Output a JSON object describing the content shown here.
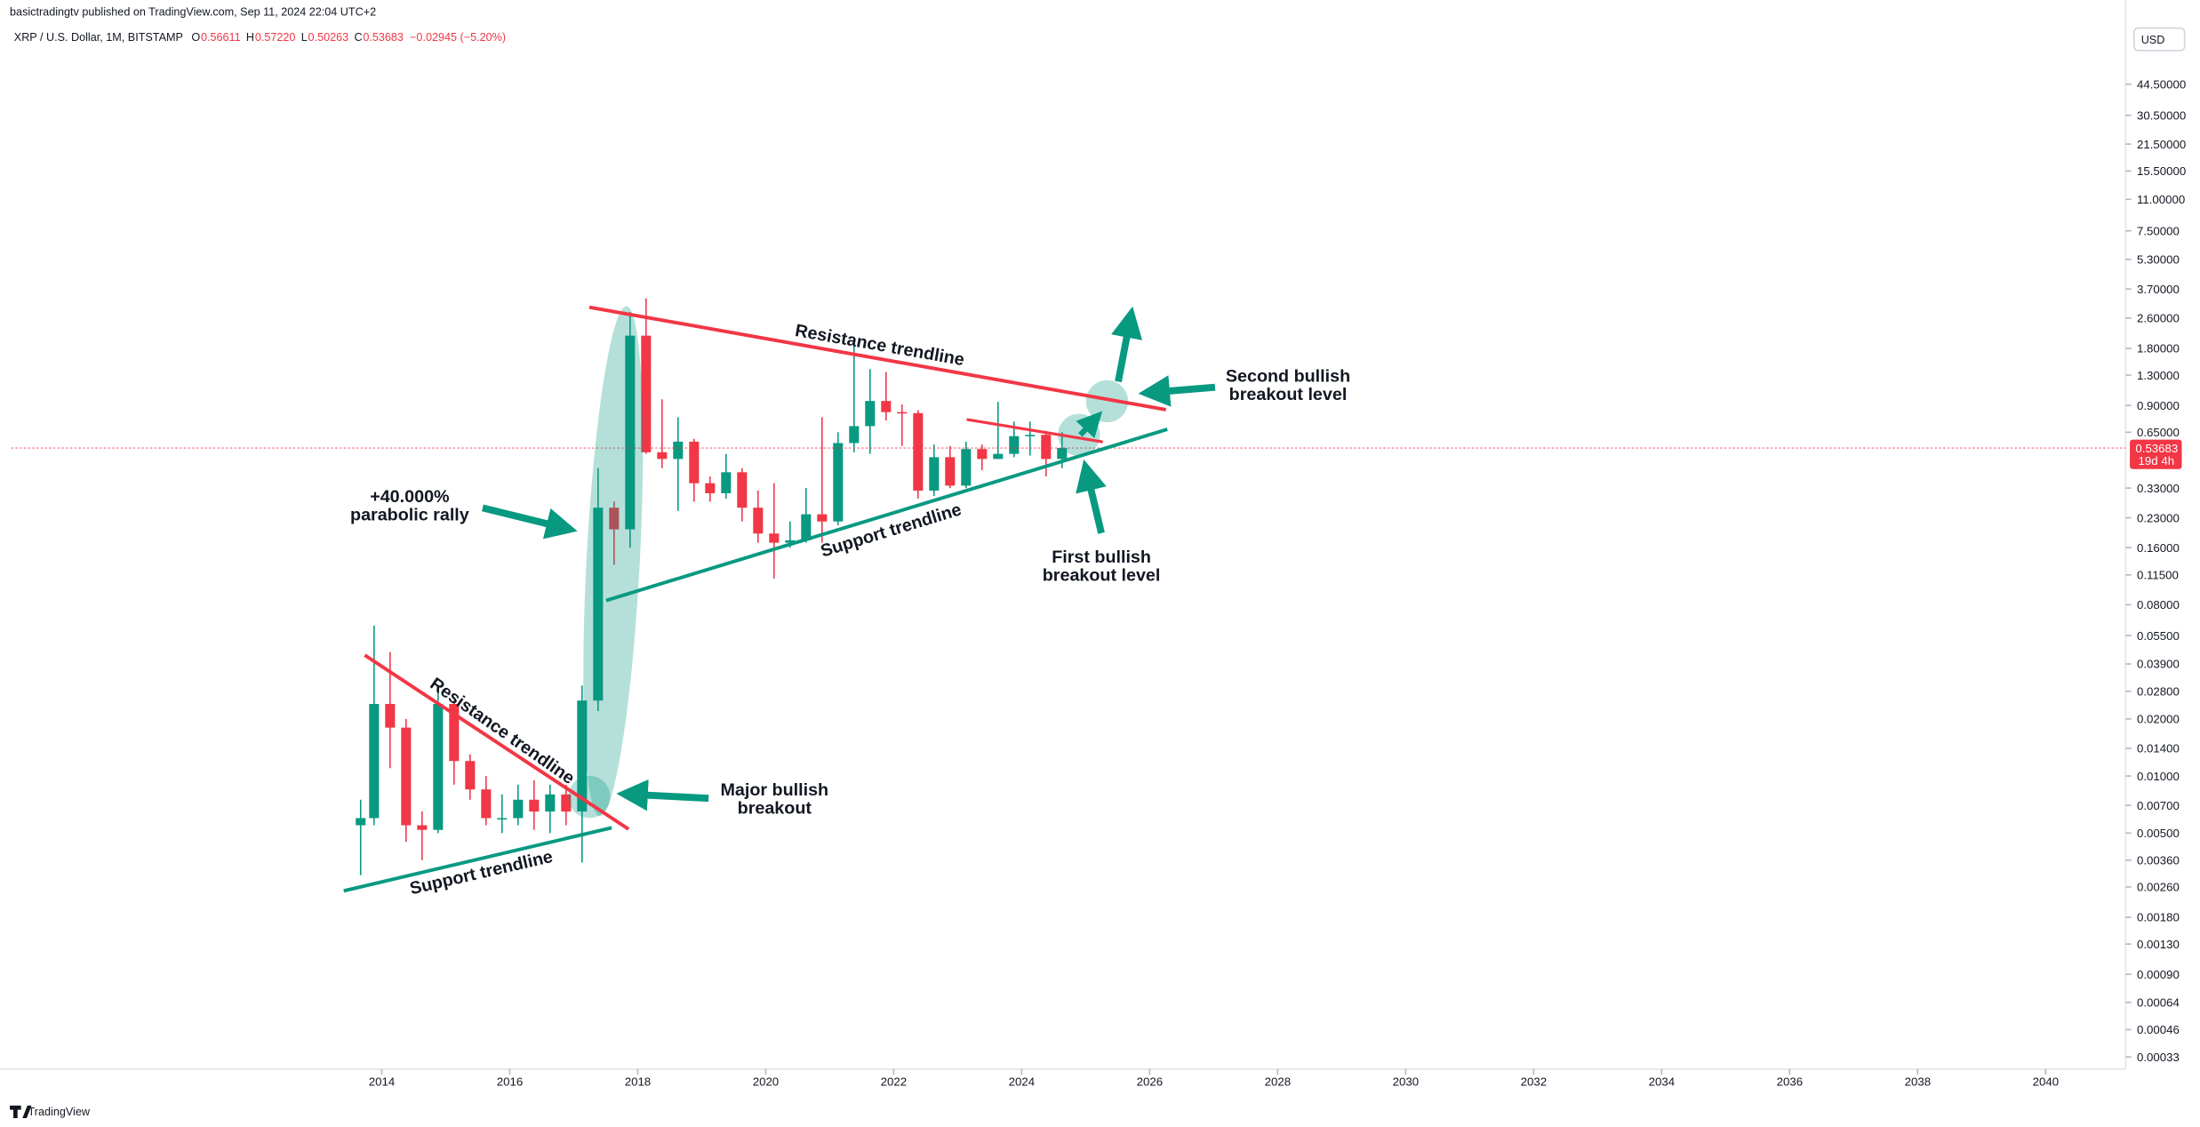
{
  "chart_data": {
    "type": "candlestick",
    "publisher": "basictradingtv published on TradingView.com, Sep 11, 2024 22:04 UTC+2",
    "symbol": "XRP / U.S. Dollar, 1M, BITSTAMP",
    "ohlc_legend": [
      {
        "label": "O",
        "value": "0.56611"
      },
      {
        "label": "H",
        "value": "0.57220"
      },
      {
        "label": "L",
        "value": "0.50263"
      },
      {
        "label": "C",
        "value": "0.53683"
      },
      {
        "label": "",
        "value": "−0.02945 (−5.20%)"
      }
    ],
    "currency": "USD",
    "last_price": 0.53683,
    "countdown": "19d 4h",
    "brand": "TradingView",
    "log_scale": true,
    "up_color": "#089981",
    "down_color": "#f23645",
    "xlim": [
      2008.21,
      2041.25
    ],
    "xticks": [
      2014,
      2016,
      2018,
      2020,
      2022,
      2024,
      2026,
      2028,
      2030,
      2032,
      2034,
      2036,
      2038,
      2040
    ],
    "ylim": [
      0.000285,
      85
    ],
    "yticks": [
      {
        "value": 44.5,
        "label": "44.50000"
      },
      {
        "value": 30.5,
        "label": "30.50000"
      },
      {
        "value": 21.5,
        "label": "21.50000"
      },
      {
        "value": 15.5,
        "label": "15.50000"
      },
      {
        "value": 11,
        "label": "11.00000"
      },
      {
        "value": 7.5,
        "label": "7.50000"
      },
      {
        "value": 5.3,
        "label": "5.30000"
      },
      {
        "value": 3.7,
        "label": "3.70000"
      },
      {
        "value": 2.6,
        "label": "2.60000"
      },
      {
        "value": 1.8,
        "label": "1.80000"
      },
      {
        "value": 1.3,
        "label": "1.30000"
      },
      {
        "value": 0.9,
        "label": "0.90000"
      },
      {
        "value": 0.65,
        "label": "0.65000"
      },
      {
        "value": 0.33,
        "label": "0.33000"
      },
      {
        "value": 0.23,
        "label": "0.23000"
      },
      {
        "value": 0.16,
        "label": "0.16000"
      },
      {
        "value": 0.115,
        "label": "0.11500"
      },
      {
        "value": 0.08,
        "label": "0.08000"
      },
      {
        "value": 0.055,
        "label": "0.05500"
      },
      {
        "value": 0.039,
        "label": "0.03900"
      },
      {
        "value": 0.028,
        "label": "0.02800"
      },
      {
        "value": 0.02,
        "label": "0.02000"
      },
      {
        "value": 0.014,
        "label": "0.01400"
      },
      {
        "value": 0.01,
        "label": "0.01000"
      },
      {
        "value": 0.007,
        "label": "0.00700"
      },
      {
        "value": 0.005,
        "label": "0.00500"
      },
      {
        "value": 0.0036,
        "label": "0.00360"
      },
      {
        "value": 0.0026,
        "label": "0.00260"
      },
      {
        "value": 0.0018,
        "label": "0.00180"
      },
      {
        "value": 0.0013,
        "label": "0.00130"
      },
      {
        "value": 0.0009,
        "label": "0.00090"
      },
      {
        "value": 0.00064,
        "label": "0.00064"
      },
      {
        "value": 0.00046,
        "label": "0.00046"
      },
      {
        "value": 0.00033,
        "label": "0.00033"
      }
    ],
    "x": [
      2013.67,
      2013.88,
      2014.13,
      2014.38,
      2014.63,
      2014.88,
      2015.13,
      2015.38,
      2015.63,
      2015.88,
      2016.13,
      2016.38,
      2016.63,
      2016.88,
      2017.13,
      2017.38,
      2017.63,
      2017.88,
      2018.13,
      2018.38,
      2018.63,
      2018.88,
      2019.13,
      2019.38,
      2019.63,
      2019.88,
      2020.13,
      2020.38,
      2020.63,
      2020.88,
      2021.13,
      2021.38,
      2021.63,
      2021.88,
      2022.13,
      2022.38,
      2022.63,
      2022.88,
      2023.13,
      2023.38,
      2023.63,
      2023.88,
      2024.13,
      2024.38,
      2024.63
    ],
    "open": [
      0.0055,
      0.006,
      0.024,
      0.018,
      0.0055,
      0.0052,
      0.024,
      0.012,
      0.0085,
      0.006,
      0.006,
      0.0075,
      0.0065,
      0.008,
      0.0065,
      0.025,
      0.26,
      0.2,
      2.1,
      0.51,
      0.47,
      0.58,
      0.35,
      0.31,
      0.4,
      0.26,
      0.19,
      0.17,
      0.175,
      0.24,
      0.22,
      0.57,
      0.7,
      0.95,
      0.83,
      0.82,
      0.32,
      0.48,
      0.34,
      0.53,
      0.47,
      0.5,
      0.62,
      0.63,
      0.47
    ],
    "high": [
      0.0075,
      0.062,
      0.045,
      0.02,
      0.0065,
      0.03,
      0.025,
      0.013,
      0.01,
      0.008,
      0.009,
      0.0095,
      0.009,
      0.009,
      0.03,
      0.42,
      0.28,
      2.8,
      3.3,
      0.97,
      0.78,
      0.6,
      0.38,
      0.5,
      0.42,
      0.32,
      0.35,
      0.22,
      0.33,
      0.78,
      0.65,
      1.96,
      1.4,
      1.35,
      0.91,
      0.85,
      0.56,
      0.55,
      0.58,
      0.56,
      0.94,
      0.74,
      0.74,
      0.66,
      0.65
    ],
    "low": [
      0.003,
      0.0055,
      0.011,
      0.0045,
      0.0036,
      0.005,
      0.009,
      0.0075,
      0.0055,
      0.005,
      0.0055,
      0.0052,
      0.005,
      0.0055,
      0.0035,
      0.022,
      0.13,
      0.16,
      0.5,
      0.42,
      0.25,
      0.28,
      0.28,
      0.29,
      0.22,
      0.17,
      0.11,
      0.16,
      0.17,
      0.17,
      0.21,
      0.51,
      0.5,
      0.75,
      0.55,
      0.29,
      0.3,
      0.33,
      0.33,
      0.41,
      0.47,
      0.48,
      0.49,
      0.38,
      0.42
    ],
    "close": [
      0.006,
      0.024,
      0.018,
      0.0055,
      0.0052,
      0.024,
      0.012,
      0.0085,
      0.006,
      0.006,
      0.0075,
      0.0065,
      0.008,
      0.0065,
      0.025,
      0.26,
      0.2,
      2.1,
      0.51,
      0.47,
      0.58,
      0.35,
      0.31,
      0.4,
      0.26,
      0.19,
      0.17,
      0.175,
      0.24,
      0.22,
      0.57,
      0.7,
      0.95,
      0.83,
      0.82,
      0.32,
      0.48,
      0.34,
      0.53,
      0.47,
      0.5,
      0.62,
      0.63,
      0.47,
      0.53683
    ],
    "annotations": [
      "Resistance trendline",
      "Support trendline",
      "Resistance trendline",
      "Support trendline",
      "+40.000%",
      "parabolic rally",
      "Major bullish",
      "breakout",
      "Second bullish",
      "breakout level",
      "First bullish",
      "breakout level"
    ]
  }
}
